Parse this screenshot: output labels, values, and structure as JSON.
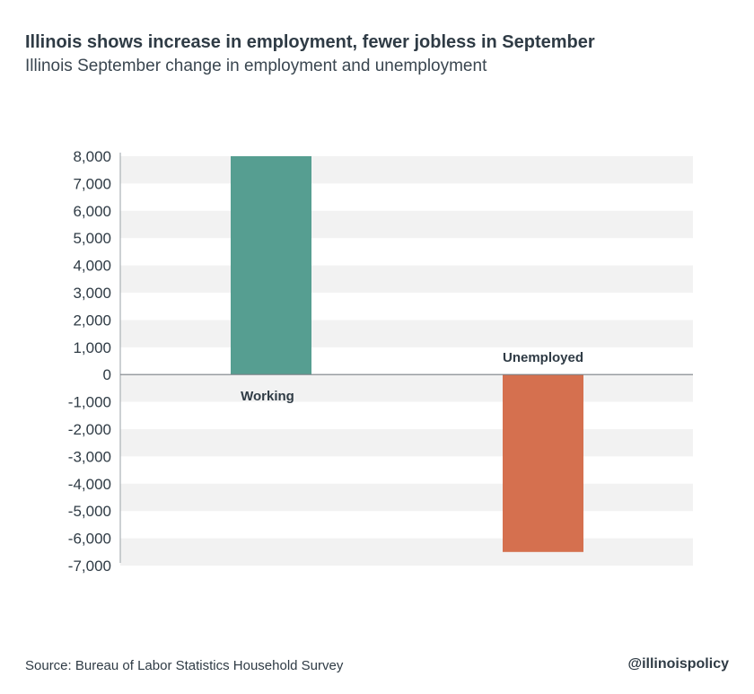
{
  "title": "Illinois shows increase in employment, fewer jobless in September",
  "subtitle": "Illinois September change in employment and unemployment",
  "source": "Source: Bureau of Labor Statistics Household Survey",
  "handle": "@illinoispolicy",
  "chart_data": {
    "type": "bar",
    "categories": [
      "Working",
      "Unemployed"
    ],
    "values": [
      8000,
      -6500
    ],
    "colors": [
      "#569e91",
      "#d5704f"
    ],
    "ylim": [
      -7000,
      8000
    ],
    "yticks": [
      8000,
      7000,
      6000,
      5000,
      4000,
      3000,
      2000,
      1000,
      0,
      -1000,
      -2000,
      -3000,
      -4000,
      -5000,
      -6000,
      -7000
    ],
    "ytick_labels": [
      "8,000",
      "7,000",
      "6,000",
      "5,000",
      "4,000",
      "3,000",
      "2,000",
      "1,000",
      "0",
      "-1,000",
      "-2,000",
      "-3,000",
      "-4,000",
      "-5,000",
      "-6,000",
      "-7,000"
    ],
    "grid": "alternating bands",
    "xlabel": "",
    "ylabel": ""
  }
}
